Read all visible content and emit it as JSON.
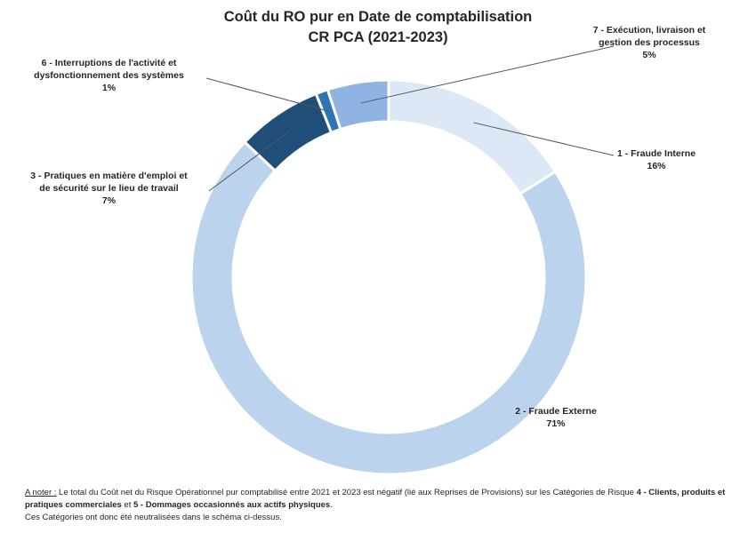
{
  "chart_data": {
    "type": "pie",
    "title": "Coût du RO pur en Date de comptabilisation",
    "subtitle": "CR PCA (2021-2023)",
    "slices": [
      {
        "category": "1 - Fraude Interne",
        "value": 16,
        "label": "16%",
        "color": "#dde8f6"
      },
      {
        "category": "2 - Fraude Externe",
        "value": 71,
        "label": "71%",
        "color": "#bcd3ee"
      },
      {
        "category": "3 - Pratiques en matière d'emploi et de sécurité sur le lieu de travail",
        "value": 7,
        "label": "7%",
        "color": "#1f4e79"
      },
      {
        "category": "6 - Interruptions de l'activité et dysfonctionnement des systèmes",
        "value": 1,
        "label": "1%",
        "color": "#2e75b6"
      },
      {
        "category": "7 - Exécution, livraison et gestion des processus",
        "value": 5,
        "label": "5%",
        "color": "#8fb4e3"
      }
    ]
  },
  "labels": {
    "s1": {
      "line1": "1 - Fraude Interne",
      "pct": "16%"
    },
    "s2": {
      "line1": "2 - Fraude Externe",
      "pct": "71%"
    },
    "s3": {
      "line1": "3 - Pratiques en matière d'emploi et",
      "line2": "de sécurité sur le lieu de travail",
      "pct": "7%"
    },
    "s6": {
      "line1": "6 - Interruptions de l'activité et",
      "line2": "dysfonctionnement des systèmes",
      "pct": "1%"
    },
    "s7": {
      "line1": "7 - Exécution, livraison et",
      "line2": "gestion des processus",
      "pct": "5%"
    }
  },
  "note": {
    "prefix": "A noter :",
    "text1": " Le total du Coût net du Risque Opérationnel pur comptabilisé entre 2021 et 2023 est négatif (lié aux Reprises de Provisions) sur les Catégories de Risque ",
    "bold1": "4 - Clients, produits et pratiques commerciales",
    "text2": " et ",
    "bold2": "5 - Dommages occasionnés aux actifs physiques",
    "text3": ".",
    "line3": "Ces Catégories ont donc été neutralisées dans le schéma ci-dessus."
  }
}
